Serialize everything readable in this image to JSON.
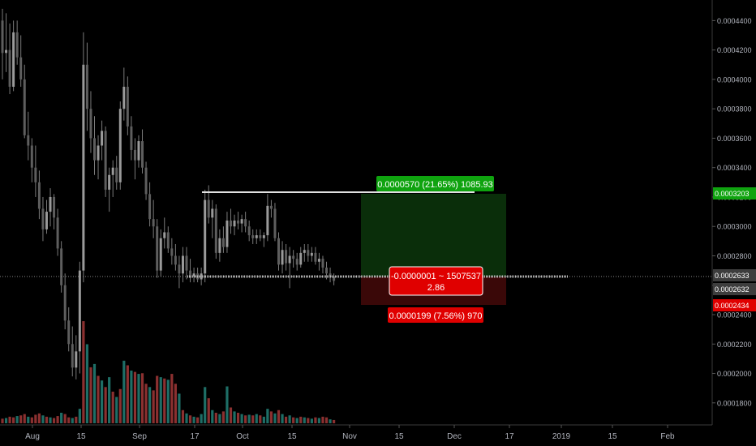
{
  "chart_data": {
    "type": "candlestick",
    "x_ticks": [
      "Aug",
      "15",
      "Sep",
      "17",
      "Oct",
      "15",
      "Nov",
      "15",
      "Dec",
      "17",
      "2019",
      "15",
      "Feb"
    ],
    "y_ticks": [
      "0.0001800",
      "0.0002000",
      "0.0002200",
      "0.0002400",
      "0.0002600",
      "0.0002800",
      "0.0003000",
      "0.0003200",
      "0.0003400",
      "0.0003600",
      "0.0003800",
      "0.0004000",
      "0.0004200",
      "0.0004400"
    ],
    "ylim": [
      0.000165,
      0.000454
    ],
    "grid": false,
    "current_price": "0.0002633",
    "entry_price": "0.0002632",
    "target_price": "0.0003203",
    "stop_price": "0.0002434",
    "long_position": {
      "profit_label": "0.0000570 (21.65%) 1085.93",
      "loss_label": "0.0000199 (7.56%) 970",
      "info_line1": "-0.0000001 ~ 1507537",
      "info_line2": "2.86"
    },
    "colors": {
      "up": "#26a69a",
      "down": "#ef5350",
      "candle": "#7a7a7a",
      "profit_zone": "#0a2e0a",
      "loss_zone": "#3a0808",
      "profit_label": "#0fa30f",
      "loss_label": "#e00000"
    },
    "candles": [
      [
        0.00044,
        0.000448,
        0.0004,
        0.000418
      ],
      [
        0.000418,
        0.000445,
        0.000405,
        0.00042
      ],
      [
        0.00042,
        0.000438,
        0.00039,
        0.000395
      ],
      [
        0.000395,
        0.00044,
        0.000392,
        0.000432
      ],
      [
        0.000432,
        0.00044,
        0.00041,
        0.000415
      ],
      [
        0.000415,
        0.00043,
        0.000395,
        0.0004
      ],
      [
        0.0004,
        0.00041,
        0.00036,
        0.000362
      ],
      [
        0.000362,
        0.000378,
        0.000345,
        0.000355
      ],
      [
        0.000355,
        0.00036,
        0.00033,
        0.00034
      ],
      [
        0.00034,
        0.000355,
        0.00032,
        0.00033
      ],
      [
        0.00033,
        0.000338,
        0.000305,
        0.000312
      ],
      [
        0.000312,
        0.00032,
        0.00029,
        0.000298
      ],
      [
        0.000298,
        0.000318,
        0.000295,
        0.00031
      ],
      [
        0.00031,
        0.000326,
        0.0003,
        0.00032
      ],
      [
        0.00032,
        0.000322,
        0.000298,
        0.000306
      ],
      [
        0.000306,
        0.000312,
        0.00028,
        0.000285
      ],
      [
        0.000285,
        0.00029,
        0.000255,
        0.00026
      ],
      [
        0.00026,
        0.000268,
        0.00023,
        0.000236
      ],
      [
        0.000236,
        0.000245,
        0.000215,
        0.00022
      ],
      [
        0.00022,
        0.000232,
        0.000198,
        0.000204
      ],
      [
        0.000204,
        0.000226,
        0.000196,
        0.000215
      ],
      [
        0.000215,
        0.000276,
        0.0002,
        0.00027
      ],
      [
        0.00027,
        0.000432,
        0.000262,
        0.00041
      ],
      [
        0.00041,
        0.000425,
        0.000365,
        0.00038
      ],
      [
        0.00038,
        0.000392,
        0.00035,
        0.00036
      ],
      [
        0.00036,
        0.000375,
        0.000335,
        0.000345
      ],
      [
        0.000345,
        0.000362,
        0.000332,
        0.000355
      ],
      [
        0.000355,
        0.000372,
        0.000345,
        0.000365
      ],
      [
        0.000365,
        0.000368,
        0.00032,
        0.000325
      ],
      [
        0.000325,
        0.00034,
        0.00031,
        0.000335
      ],
      [
        0.000335,
        0.000345,
        0.00032,
        0.00034
      ],
      [
        0.00034,
        0.000348,
        0.000325,
        0.00033
      ],
      [
        0.00033,
        0.000385,
        0.000325,
        0.00038
      ],
      [
        0.00038,
        0.000408,
        0.000372,
        0.000395
      ],
      [
        0.000395,
        0.000402,
        0.000362,
        0.000368
      ],
      [
        0.000368,
        0.000375,
        0.000345,
        0.000352
      ],
      [
        0.000352,
        0.00036,
        0.000332,
        0.000345
      ],
      [
        0.000345,
        0.000362,
        0.00034,
        0.000358
      ],
      [
        0.000358,
        0.000366,
        0.000336,
        0.00034
      ],
      [
        0.00034,
        0.000344,
        0.000318,
        0.000322
      ],
      [
        0.000322,
        0.00033,
        0.0003,
        0.000305
      ],
      [
        0.000305,
        0.000318,
        0.000292,
        0.0003
      ],
      [
        0.0003,
        0.000305,
        0.000265,
        0.00027
      ],
      [
        0.00027,
        0.000298,
        0.000266,
        0.000292
      ],
      [
        0.000292,
        0.000306,
        0.000285,
        0.000296
      ],
      [
        0.000296,
        0.0003,
        0.000282,
        0.000285
      ],
      [
        0.000285,
        0.000292,
        0.000274,
        0.00028
      ],
      [
        0.00028,
        0.000288,
        0.00027,
        0.000274
      ],
      [
        0.000274,
        0.00028,
        0.000258,
        0.000268
      ],
      [
        0.000268,
        0.000286,
        0.000262,
        0.00028
      ],
      [
        0.00028,
        0.000286,
        0.000264,
        0.00027
      ],
      [
        0.00027,
        0.000278,
        0.000262,
        0.000266
      ],
      [
        0.000266,
        0.000272,
        0.000262,
        0.000268
      ],
      [
        0.000268,
        0.000272,
        0.000262,
        0.000264
      ],
      [
        0.000264,
        0.000272,
        0.00026,
        0.000268
      ],
      [
        0.000268,
        0.000325,
        0.000262,
        0.000318
      ],
      [
        0.000318,
        0.000328,
        0.000302,
        0.000306
      ],
      [
        0.000306,
        0.000318,
        0.000292,
        0.000312
      ],
      [
        0.000312,
        0.000315,
        0.000278,
        0.000282
      ],
      [
        0.000282,
        0.000298,
        0.000276,
        0.000292
      ],
      [
        0.000292,
        0.0003,
        0.000282,
        0.000286
      ],
      [
        0.000286,
        0.00031,
        0.000282,
        0.000304
      ],
      [
        0.000304,
        0.000312,
        0.000295,
        0.0003
      ],
      [
        0.0003,
        0.000308,
        0.000294,
        0.000304
      ],
      [
        0.000304,
        0.00031,
        0.000298,
        0.000302
      ],
      [
        0.000302,
        0.000308,
        0.000296,
        0.000305
      ],
      [
        0.000305,
        0.00031,
        0.000296,
        0.0003
      ],
      [
        0.0003,
        0.000304,
        0.00029,
        0.000294
      ],
      [
        0.000294,
        0.000298,
        0.000288,
        0.000292
      ],
      [
        0.000292,
        0.000298,
        0.000288,
        0.000294
      ],
      [
        0.000294,
        0.000298,
        0.00029,
        0.000292
      ],
      [
        0.000292,
        0.000296,
        0.000286,
        0.000294
      ],
      [
        0.000294,
        0.000322,
        0.00029,
        0.000314
      ],
      [
        0.000314,
        0.000318,
        0.000306,
        0.000312
      ],
      [
        0.000312,
        0.000316,
        0.00029,
        0.000292
      ],
      [
        0.000292,
        0.000296,
        0.00027,
        0.000274
      ],
      [
        0.000274,
        0.00029,
        0.000268,
        0.000284
      ],
      [
        0.000284,
        0.000288,
        0.00027,
        0.000275
      ],
      [
        0.000275,
        0.000286,
        0.000258,
        0.00028
      ],
      [
        0.00028,
        0.000284,
        0.000272,
        0.000278
      ],
      [
        0.000278,
        0.000282,
        0.00027,
        0.000274
      ],
      [
        0.000274,
        0.000286,
        0.000272,
        0.000282
      ],
      [
        0.000282,
        0.000288,
        0.000276,
        0.000284
      ],
      [
        0.000284,
        0.000288,
        0.000276,
        0.00028
      ],
      [
        0.00028,
        0.000286,
        0.000276,
        0.000282
      ],
      [
        0.000282,
        0.000286,
        0.000274,
        0.000276
      ],
      [
        0.000276,
        0.000282,
        0.00027,
        0.000278
      ],
      [
        0.000278,
        0.00028,
        0.000268,
        0.000272
      ],
      [
        0.000272,
        0.000276,
        0.000264,
        0.000268
      ],
      [
        0.000268,
        0.000272,
        0.000262,
        0.000266
      ],
      [
        0.000266,
        0.000268,
        0.00026,
        0.000263
      ]
    ],
    "volumes": [
      [
        7,
        "d"
      ],
      [
        8,
        "u"
      ],
      [
        10,
        "d"
      ],
      [
        9,
        "d"
      ],
      [
        11,
        "u"
      ],
      [
        12,
        "d"
      ],
      [
        14,
        "d"
      ],
      [
        10,
        "u"
      ],
      [
        9,
        "d"
      ],
      [
        13,
        "d"
      ],
      [
        15,
        "d"
      ],
      [
        12,
        "u"
      ],
      [
        10,
        "d"
      ],
      [
        9,
        "u"
      ],
      [
        8,
        "d"
      ],
      [
        11,
        "d"
      ],
      [
        16,
        "u"
      ],
      [
        14,
        "d"
      ],
      [
        9,
        "d"
      ],
      [
        8,
        "u"
      ],
      [
        10,
        "d"
      ],
      [
        22,
        "u"
      ],
      [
        155,
        "d"
      ],
      [
        120,
        "u"
      ],
      [
        85,
        "d"
      ],
      [
        90,
        "u"
      ],
      [
        72,
        "d"
      ],
      [
        65,
        "u"
      ],
      [
        55,
        "d"
      ],
      [
        70,
        "u"
      ],
      [
        48,
        "d"
      ],
      [
        40,
        "u"
      ],
      [
        52,
        "d"
      ],
      [
        95,
        "u"
      ],
      [
        88,
        "d"
      ],
      [
        80,
        "u"
      ],
      [
        78,
        "d"
      ],
      [
        75,
        "u"
      ],
      [
        76,
        "d"
      ],
      [
        60,
        "d"
      ],
      [
        55,
        "u"
      ],
      [
        50,
        "d"
      ],
      [
        72,
        "d"
      ],
      [
        70,
        "u"
      ],
      [
        68,
        "d"
      ],
      [
        66,
        "u"
      ],
      [
        75,
        "d"
      ],
      [
        60,
        "d"
      ],
      [
        45,
        "u"
      ],
      [
        20,
        "d"
      ],
      [
        15,
        "u"
      ],
      [
        12,
        "d"
      ],
      [
        10,
        "u"
      ],
      [
        9,
        "d"
      ],
      [
        14,
        "u"
      ],
      [
        55,
        "u"
      ],
      [
        38,
        "d"
      ],
      [
        20,
        "u"
      ],
      [
        16,
        "d"
      ],
      [
        14,
        "u"
      ],
      [
        18,
        "d"
      ],
      [
        56,
        "u"
      ],
      [
        24,
        "d"
      ],
      [
        18,
        "u"
      ],
      [
        16,
        "d"
      ],
      [
        14,
        "u"
      ],
      [
        12,
        "d"
      ],
      [
        13,
        "u"
      ],
      [
        12,
        "d"
      ],
      [
        14,
        "u"
      ],
      [
        12,
        "d"
      ],
      [
        10,
        "u"
      ],
      [
        22,
        "u"
      ],
      [
        18,
        "d"
      ],
      [
        15,
        "u"
      ],
      [
        20,
        "d"
      ],
      [
        14,
        "u"
      ],
      [
        10,
        "d"
      ],
      [
        12,
        "u"
      ],
      [
        9,
        "d"
      ],
      [
        8,
        "u"
      ],
      [
        10,
        "d"
      ],
      [
        9,
        "u"
      ],
      [
        8,
        "d"
      ],
      [
        7,
        "u"
      ],
      [
        9,
        "d"
      ],
      [
        8,
        "u"
      ],
      [
        10,
        "d"
      ],
      [
        9,
        "d"
      ],
      [
        6,
        "u"
      ],
      [
        5,
        "d"
      ]
    ]
  }
}
